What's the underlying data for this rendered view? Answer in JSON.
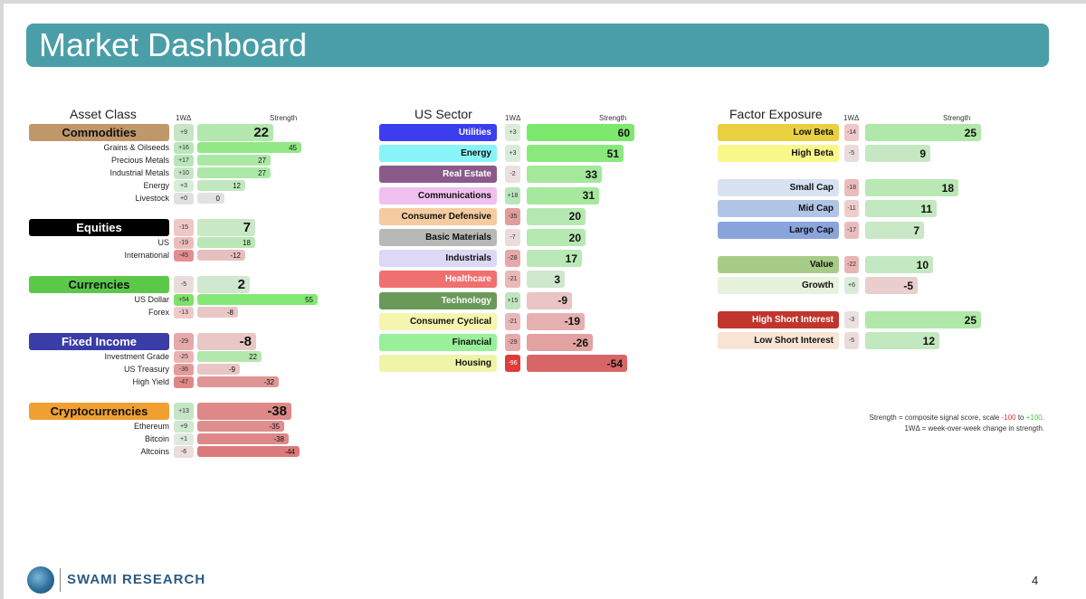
{
  "title": "Market Dashboard",
  "headers": {
    "col1": "Asset Class",
    "col2": "US Sector",
    "col3": "Factor Exposure",
    "delta": "1WΔ",
    "strength": "Strength"
  },
  "asset_groups": [
    {
      "name": "Commodities",
      "color": "#c0976a",
      "text": "#111111",
      "delta": "+9",
      "dcolor": "#c6e5c6",
      "strength": 22,
      "items": [
        {
          "name": "Grains & Oilseeds",
          "delta": "+16",
          "dcolor": "#b9e6b9",
          "strength": 45
        },
        {
          "name": "Precious Metals",
          "delta": "+17",
          "dcolor": "#b9e6b9",
          "strength": 27
        },
        {
          "name": "Industrial Metals",
          "delta": "+10",
          "dcolor": "#c6e5c6",
          "strength": 27
        },
        {
          "name": "Energy",
          "delta": "+3",
          "dcolor": "#d9ecd9",
          "strength": 12
        },
        {
          "name": "Livestock",
          "delta": "+0",
          "dcolor": "#e0e0e0",
          "strength": 0
        }
      ]
    },
    {
      "name": "Equities",
      "color": "#000000",
      "text": "#ffffff",
      "delta": "-15",
      "dcolor": "#efc7c7",
      "strength": 7,
      "items": [
        {
          "name": "US",
          "delta": "-19",
          "dcolor": "#ebbcbc",
          "strength": 18
        },
        {
          "name": "International",
          "delta": "-45",
          "dcolor": "#e38f8f",
          "strength": -12
        }
      ]
    },
    {
      "name": "Currencies",
      "color": "#5cc84a",
      "text": "#111111",
      "delta": "-5",
      "dcolor": "#ebdcdc",
      "strength": 2,
      "items": [
        {
          "name": "US Dollar",
          "delta": "+54",
          "dcolor": "#7fe06a",
          "strength": 55
        },
        {
          "name": "Forex",
          "delta": "-13",
          "dcolor": "#efcaca",
          "strength": -8
        }
      ]
    },
    {
      "name": "Fixed Income",
      "color": "#3a3ca8",
      "text": "#ffffff",
      "delta": "-29",
      "dcolor": "#e6a8a8",
      "strength": -8,
      "items": [
        {
          "name": "Investment Grade",
          "delta": "-25",
          "dcolor": "#eab4b4",
          "strength": 22
        },
        {
          "name": "US Treasury",
          "delta": "-36",
          "dcolor": "#e39c9c",
          "strength": -9
        },
        {
          "name": "High Yield",
          "delta": "-47",
          "dcolor": "#df8787",
          "strength": -32
        }
      ]
    },
    {
      "name": "Cryptocurrencies",
      "color": "#f0a030",
      "text": "#111111",
      "delta": "+13",
      "dcolor": "#c6e5c6",
      "strength": -38,
      "items": [
        {
          "name": "Ethereum",
          "delta": "+9",
          "dcolor": "#cfe8cf",
          "strength": -35
        },
        {
          "name": "Bitcoin",
          "delta": "+1",
          "dcolor": "#dfeadf",
          "strength": -38
        },
        {
          "name": "Altcoins",
          "delta": "-6",
          "dcolor": "#ecdcdc",
          "strength": -44
        }
      ]
    }
  ],
  "sectors": [
    {
      "name": "Utilities",
      "color": "#3d3df0",
      "text": "#ffffff",
      "delta": "+3",
      "dcolor": "#d9ecd9",
      "strength": 60
    },
    {
      "name": "Energy",
      "color": "#88f4f8",
      "text": "#111111",
      "delta": "+3",
      "dcolor": "#d9ecd9",
      "strength": 51
    },
    {
      "name": "Real Estate",
      "color": "#8a5a8a",
      "text": "#ffffff",
      "delta": "-2",
      "dcolor": "#ebe0e0",
      "strength": 33
    },
    {
      "name": "Communications",
      "color": "#f0c0f0",
      "text": "#111111",
      "delta": "+18",
      "dcolor": "#b9e6b9",
      "strength": 31
    },
    {
      "name": "Consumer Defensive",
      "color": "#f5cba0",
      "text": "#111111",
      "delta": "-35",
      "dcolor": "#e39c9c",
      "strength": 20
    },
    {
      "name": "Basic Materials",
      "color": "#b8b8b8",
      "text": "#111111",
      "delta": "-7",
      "dcolor": "#ebdcdc",
      "strength": 20
    },
    {
      "name": "Industrials",
      "color": "#dcd8f5",
      "text": "#111111",
      "delta": "-28",
      "dcolor": "#e6a8a8",
      "strength": 17
    },
    {
      "name": "Healthcare",
      "color": "#f07070",
      "text": "#ffffff",
      "delta": "-21",
      "dcolor": "#eab8b8",
      "strength": 3
    },
    {
      "name": "Technology",
      "color": "#6a9a5a",
      "text": "#ffffff",
      "delta": "+15",
      "dcolor": "#c0e4c0",
      "strength": -9
    },
    {
      "name": "Consumer Cyclical",
      "color": "#f5f5b0",
      "text": "#111111",
      "delta": "-21",
      "dcolor": "#eab8b8",
      "strength": -19
    },
    {
      "name": "Financial",
      "color": "#98f098",
      "text": "#111111",
      "delta": "-29",
      "dcolor": "#e6a8a8",
      "strength": -26
    },
    {
      "name": "Housing",
      "color": "#eef5a8",
      "text": "#111111",
      "delta": "-96",
      "dcolor": "#e03a3a",
      "strength": -54
    }
  ],
  "factors": [
    {
      "name": "Low Beta",
      "color": "#e8d040",
      "text": "#111111",
      "delta": "-14",
      "dcolor": "#efc7c7",
      "strength": 25
    },
    {
      "name": "High Beta",
      "color": "#f8f88a",
      "text": "#111111",
      "delta": "-5",
      "dcolor": "#ebdcdc",
      "strength": 9
    },
    {
      "name": "Small Cap",
      "color": "#d8e2f2",
      "text": "#111111",
      "delta": "-18",
      "dcolor": "#ebbcbc",
      "strength": 18
    },
    {
      "name": "Mid Cap",
      "color": "#b0c4e6",
      "text": "#111111",
      "delta": "-11",
      "dcolor": "#efcccc",
      "strength": 11
    },
    {
      "name": "Large Cap",
      "color": "#8aa4dc",
      "text": "#111111",
      "delta": "-17",
      "dcolor": "#ebbcbc",
      "strength": 7
    },
    {
      "name": "Value",
      "color": "#a8cc88",
      "text": "#111111",
      "delta": "-22",
      "dcolor": "#eab4b4",
      "strength": 10
    },
    {
      "name": "Growth",
      "color": "#e6f2dc",
      "text": "#111111",
      "delta": "+6",
      "dcolor": "#d9ecd9",
      "strength": -5
    },
    {
      "name": "High Short Interest",
      "color": "#c0362c",
      "text": "#ffffff",
      "delta": "-3",
      "dcolor": "#ebe0e0",
      "strength": 25
    },
    {
      "name": "Low Short Interest",
      "color": "#f8e4d4",
      "text": "#111111",
      "delta": "-5",
      "dcolor": "#ebdcdc",
      "strength": 12
    }
  ],
  "legend": {
    "line1_pre": "Strength = composite signal score, scale ",
    "line1_neg": "-100",
    "line1_mid": " to ",
    "line1_pos": "+100",
    "line1_end": ".",
    "line2": "1WΔ = week-over-week change in strength."
  },
  "footer": {
    "brand": "SWAMI RESEARCH",
    "page": "4"
  }
}
